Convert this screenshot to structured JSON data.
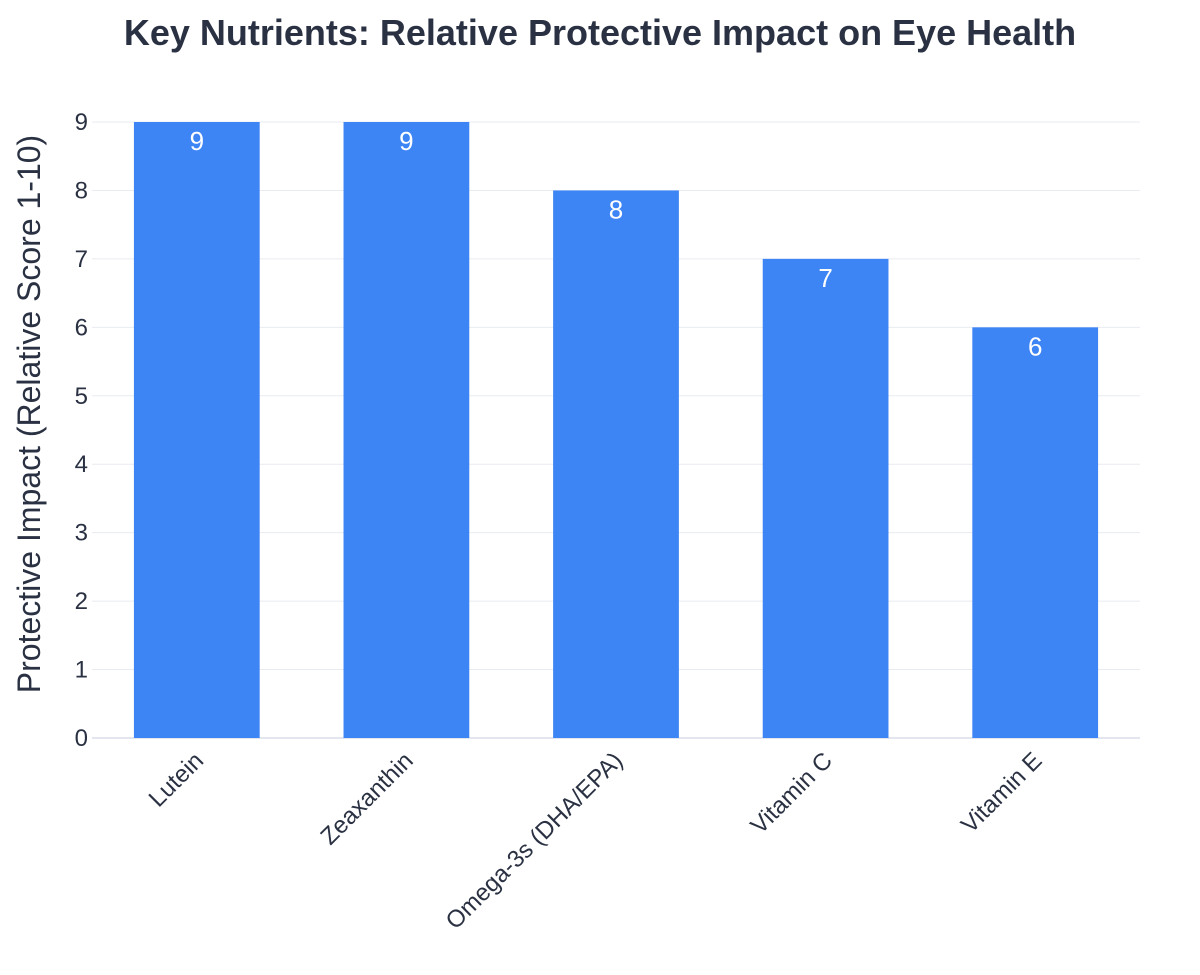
{
  "chart_data": {
    "type": "bar",
    "title": "Key Nutrients: Relative Protective Impact on Eye Health",
    "xlabel": "",
    "ylabel": "Protective Impact (Relative Score 1-10)",
    "categories": [
      "Lutein",
      "Zeaxanthin",
      "Omega-3s (DHA/EPA)",
      "Vitamin C",
      "Vitamin E"
    ],
    "values": [
      9,
      9,
      8,
      7,
      6
    ],
    "data_labels": [
      "9",
      "9",
      "8",
      "7",
      "6"
    ],
    "ylim": [
      0,
      9
    ],
    "y_ticks": [
      "0",
      "1",
      "2",
      "3",
      "4",
      "5",
      "6",
      "7",
      "8",
      "9"
    ],
    "grid": true,
    "bar_color": "#3d84f5",
    "legend": "none"
  }
}
